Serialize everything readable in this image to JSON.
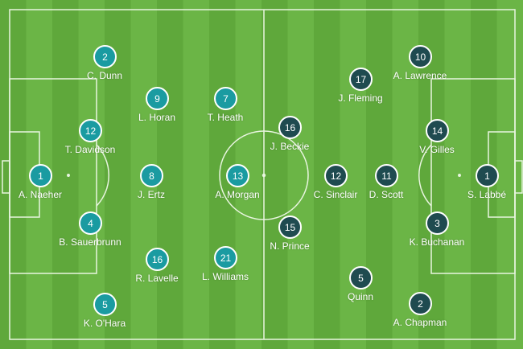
{
  "colors": {
    "home": "#1a9ba1",
    "away": "#1f4b50",
    "pitch_light": "#6bb546",
    "pitch_dark": "#5fa83b"
  },
  "home": [
    {
      "number": "2",
      "name": "C. Dunn"
    },
    {
      "number": "9",
      "name": "L. Horan"
    },
    {
      "number": "7",
      "name": "T. Heath"
    },
    {
      "number": "12",
      "name": "T. Davidson"
    },
    {
      "number": "1",
      "name": "A. Naeher"
    },
    {
      "number": "8",
      "name": "J. Ertz"
    },
    {
      "number": "13",
      "name": "A. Morgan"
    },
    {
      "number": "4",
      "name": "B. Sauerbrunn"
    },
    {
      "number": "16",
      "name": "R. Lavelle"
    },
    {
      "number": "21",
      "name": "L. Williams"
    },
    {
      "number": "5",
      "name": "K. O'Hara"
    }
  ],
  "away": [
    {
      "number": "10",
      "name": "A. Lawrence"
    },
    {
      "number": "17",
      "name": "J. Fleming"
    },
    {
      "number": "16",
      "name": "J. Beckie"
    },
    {
      "number": "14",
      "name": "V. Gilles"
    },
    {
      "number": "12",
      "name": "C. Sinclair"
    },
    {
      "number": "11",
      "name": "D. Scott"
    },
    {
      "number": "1",
      "name": "S. Labbé"
    },
    {
      "number": "15",
      "name": "N. Prince"
    },
    {
      "number": "3",
      "name": "K. Buchanan"
    },
    {
      "number": "5",
      "name": "Quinn"
    },
    {
      "number": "2",
      "name": "A. Chapman"
    }
  ]
}
